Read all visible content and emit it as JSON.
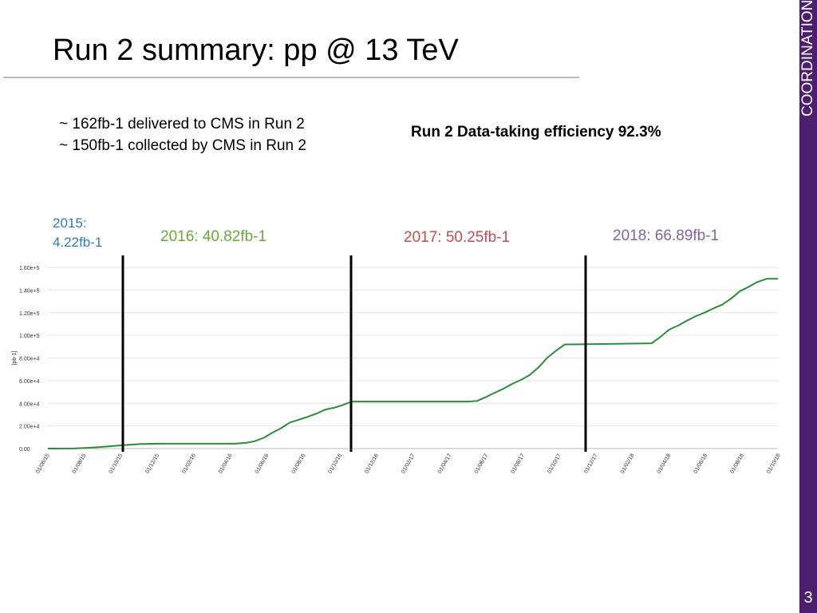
{
  "slide": {
    "title": "Run 2 summary: pp @ 13 TeV",
    "sidebar_label": "COORDINATION",
    "page_number": "3",
    "accent_color": "#4b1e6e"
  },
  "summary": {
    "delivered": "~ 162fb-1 delivered to CMS in Run 2",
    "collected": "~ 150fb-1 collected by CMS in Run 2",
    "efficiency": "Run 2 Data-taking efficiency 92.3%"
  },
  "year_labels": [
    {
      "year": "2015:",
      "value": "4.22fb-1",
      "color": "#2e7bbf"
    },
    {
      "text": "2016: 40.82fb-1",
      "color": "#6aaa3a"
    },
    {
      "text": "2017: 50.25fb-1",
      "color": "#c0504d"
    },
    {
      "text": "2018: 66.89fb-1",
      "color": "#8064a2"
    }
  ],
  "chart_data": {
    "type": "line",
    "ylabel": "[pb-1]",
    "ylim": [
      0,
      160000
    ],
    "yticks": [
      0,
      20000,
      40000,
      60000,
      80000,
      100000,
      120000,
      140000,
      160000
    ],
    "ytick_labels": [
      "0.00",
      "2.00e+4",
      "4.00e+4",
      "6.00e+4",
      "8.00e+4",
      "1.00e+5",
      "1.20e+5",
      "1.40e+5",
      "1.60e+5"
    ],
    "xtick_labels": [
      "01/06/15",
      "01/08/15",
      "01/10/15",
      "01/12/15",
      "01/02/16",
      "01/04/16",
      "01/06/16",
      "01/08/16",
      "01/10/16",
      "01/12/16",
      "01/02/17",
      "01/04/17",
      "01/06/17",
      "01/08/17",
      "01/10/17",
      "01/12/17",
      "01/02/18",
      "01/04/18",
      "01/06/18",
      "01/08/18",
      "01/10/18"
    ],
    "grid": "horizontal",
    "line_color": "#2e8b3a",
    "year_separators": [
      "2016",
      "2017",
      "2018"
    ],
    "series": [
      {
        "x": [
          "2015-06-01",
          "2015-07-15",
          "2015-08-15",
          "2015-09-15",
          "2015-10-10",
          "2015-11-10",
          "2015-12-15",
          "2016-03-01",
          "2016-04-20",
          "2016-05-10",
          "2016-05-25",
          "2016-06-10",
          "2016-06-25",
          "2016-07-10",
          "2016-07-25",
          "2016-08-10",
          "2016-08-25",
          "2016-09-10",
          "2016-09-25",
          "2016-10-10",
          "2016-10-25",
          "2016-11-10",
          "2017-06-01",
          "2017-06-15",
          "2017-07-01",
          "2017-07-15",
          "2017-08-01",
          "2017-08-15",
          "2017-09-01",
          "2017-09-15",
          "2017-10-01",
          "2017-10-15",
          "2017-11-01",
          "2017-11-15",
          "2017-11-25",
          "2018-04-15",
          "2018-05-01",
          "2018-05-15",
          "2018-06-01",
          "2018-06-15",
          "2018-07-01",
          "2018-07-15",
          "2018-08-01",
          "2018-08-15",
          "2018-09-01",
          "2018-09-15",
          "2018-10-01",
          "2018-10-15",
          "2018-11-01",
          "2018-11-20"
        ],
        "y": [
          0,
          100,
          800,
          2000,
          3000,
          4000,
          4300,
          4300,
          4300,
          5000,
          6500,
          9500,
          14000,
          18000,
          23000,
          25500,
          28000,
          31000,
          34500,
          36000,
          38500,
          41500,
          41500,
          42000,
          45500,
          49000,
          53000,
          57000,
          61000,
          65000,
          72000,
          80000,
          87000,
          92000,
          92000,
          93000,
          99000,
          105000,
          109000,
          113000,
          117000,
          120000,
          124000,
          127000,
          133000,
          139000,
          143000,
          147000,
          150000,
          150000
        ]
      }
    ]
  }
}
